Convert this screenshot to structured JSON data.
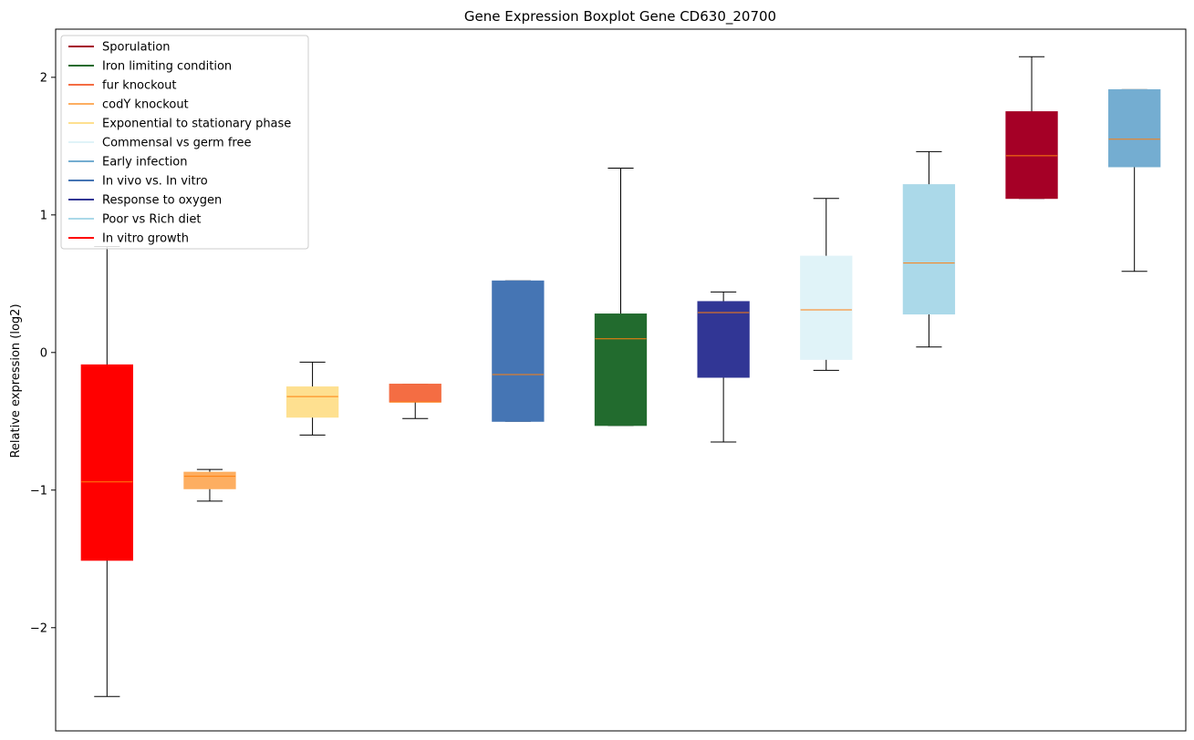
{
  "chart_data": {
    "type": "boxplot",
    "title": "Gene Expression Boxplot Gene CD630_20700",
    "xlabel": "",
    "ylabel": "Relative expression (log2)",
    "ylim": [
      -2.75,
      2.35
    ],
    "yticks": [
      {
        "value": -2,
        "label": "−2"
      },
      {
        "value": -1,
        "label": "−1"
      },
      {
        "value": 0,
        "label": "0"
      },
      {
        "value": 1,
        "label": "1"
      },
      {
        "value": 2,
        "label": "2"
      }
    ],
    "legend": {
      "position": "top-left",
      "entries": [
        {
          "label": "Sporulation",
          "color": "#a50026"
        },
        {
          "label": "Iron limiting condition",
          "color": "#226b2e"
        },
        {
          "label": "fur knockout",
          "color": "#f46d43"
        },
        {
          "label": "codY knockout",
          "color": "#fdae61"
        },
        {
          "label": "Exponential to stationary phase",
          "color": "#fee090"
        },
        {
          "label": "Commensal vs germ free",
          "color": "#e0f3f8"
        },
        {
          "label": "Early infection",
          "color": "#74add1"
        },
        {
          "label": "In vivo vs. In vitro",
          "color": "#4575b4"
        },
        {
          "label": "Response to oxygen",
          "color": "#313695"
        },
        {
          "label": "Poor vs Rich diet",
          "color": "#abd9e9"
        },
        {
          "label": "In vitro growth",
          "color": "#ff0000"
        }
      ]
    },
    "median_color": "#ff7f0e",
    "boxes": [
      {
        "condition": "In vitro growth",
        "color": "#ff0000",
        "whisker_low": -2.5,
        "q1": -1.51,
        "median": -0.94,
        "q3": -0.09,
        "whisker_high": 0.77
      },
      {
        "condition": "codY knockout",
        "color": "#fdae61",
        "whisker_low": -1.08,
        "q1": -0.99,
        "median": -0.9,
        "q3": -0.87,
        "whisker_high": -0.85
      },
      {
        "condition": "Exponential to stationary phase",
        "color": "#fee090",
        "whisker_low": -0.6,
        "q1": -0.47,
        "median": -0.32,
        "q3": -0.25,
        "whisker_high": -0.07
      },
      {
        "condition": "fur knockout",
        "color": "#f46d43",
        "whisker_low": -0.48,
        "q1": -0.36,
        "median": -0.36,
        "q3": -0.23,
        "whisker_high": -0.23
      },
      {
        "condition": "In vivo vs. In vitro",
        "color": "#4575b4",
        "whisker_low": -0.5,
        "q1": -0.5,
        "median": -0.16,
        "q3": 0.52,
        "whisker_high": 0.52
      },
      {
        "condition": "Iron limiting condition",
        "color": "#226b2e",
        "whisker_low": -0.53,
        "q1": -0.53,
        "median": 0.1,
        "q3": 0.28,
        "whisker_high": 1.34
      },
      {
        "condition": "Response to oxygen",
        "color": "#313695",
        "whisker_low": -0.65,
        "q1": -0.18,
        "median": 0.29,
        "q3": 0.37,
        "whisker_high": 0.44
      },
      {
        "condition": "Commensal vs germ free",
        "color": "#e0f3f8",
        "whisker_low": -0.13,
        "q1": -0.05,
        "median": 0.31,
        "q3": 0.7,
        "whisker_high": 1.12
      },
      {
        "condition": "Poor vs Rich diet",
        "color": "#abd9e9",
        "whisker_low": 0.04,
        "q1": 0.28,
        "median": 0.65,
        "q3": 1.22,
        "whisker_high": 1.46
      },
      {
        "condition": "Sporulation",
        "color": "#a50026",
        "whisker_low": 1.12,
        "q1": 1.12,
        "median": 1.43,
        "q3": 1.75,
        "whisker_high": 2.15
      },
      {
        "condition": "Early infection",
        "color": "#74add1",
        "whisker_low": 0.59,
        "q1": 1.35,
        "median": 1.55,
        "q3": 1.91,
        "whisker_high": 1.91
      }
    ]
  }
}
